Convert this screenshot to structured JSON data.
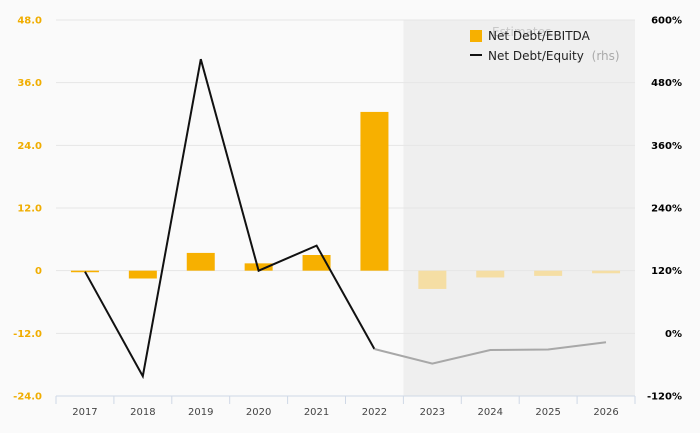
{
  "chart_data": {
    "type": "bar+line",
    "categories": [
      "2017",
      "2018",
      "2019",
      "2020",
      "2021",
      "2022",
      "2023",
      "2024",
      "2025",
      "2026"
    ],
    "estimate_start_index": 6,
    "estimates_label": "Estimates",
    "series": [
      {
        "name": "Net Debt/EBITDA",
        "kind": "bar",
        "axis": "left",
        "color": "#f7b000",
        "estimate_color": "#f5dea4",
        "values": [
          -0.3,
          -1.5,
          3.4,
          1.4,
          3.0,
          30.4,
          -3.5,
          -1.3,
          -1.0,
          -0.5
        ]
      },
      {
        "name": "Net Debt/Equity",
        "name_suffix": "(rhs)",
        "kind": "line",
        "axis": "right",
        "color": "#111111",
        "estimate_color": "#a8a8a8",
        "values": [
          118,
          -82,
          525,
          120,
          168,
          -30,
          -58,
          -32,
          -31,
          -17
        ]
      }
    ],
    "y_left": {
      "min": -24,
      "max": 48,
      "ticks": [
        "48.0",
        "36.0",
        "24.0",
        "12.0",
        "0",
        "-12.0",
        "-24.0"
      ],
      "tick_values": [
        48,
        36,
        24,
        12,
        0,
        -12,
        -24
      ]
    },
    "y_right": {
      "min": -120,
      "max": 600,
      "ticks": [
        "600%",
        "480%",
        "360%",
        "240%",
        "120%",
        "0%",
        "-120%"
      ],
      "tick_values": [
        600,
        480,
        360,
        240,
        120,
        0,
        -120
      ]
    },
    "grid": true,
    "legend_position": "top-right",
    "colors": {
      "left_axis": "#f0ad00",
      "estimate_shade": "#efefef",
      "grid": "#e6e6e6"
    }
  }
}
